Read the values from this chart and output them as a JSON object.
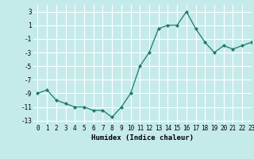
{
  "x": [
    0,
    1,
    2,
    3,
    4,
    5,
    6,
    7,
    8,
    9,
    10,
    11,
    12,
    13,
    14,
    15,
    16,
    17,
    18,
    19,
    20,
    21,
    22,
    23
  ],
  "y": [
    -9,
    -8.5,
    -10,
    -10.5,
    -11,
    -11,
    -11.5,
    -11.5,
    -12.5,
    -11,
    -9,
    -5,
    -3,
    0.5,
    1,
    1,
    3,
    0.5,
    -1.5,
    -3,
    -2,
    -2.5,
    -2,
    -1.5
  ],
  "xlabel": "Humidex (Indice chaleur)",
  "xlim": [
    -0.5,
    23
  ],
  "ylim": [
    -13.5,
    4
  ],
  "yticks": [
    3,
    1,
    -1,
    -3,
    -5,
    -7,
    -9,
    -11,
    -13
  ],
  "xticks": [
    0,
    1,
    2,
    3,
    4,
    5,
    6,
    7,
    8,
    9,
    10,
    11,
    12,
    13,
    14,
    15,
    16,
    17,
    18,
    19,
    20,
    21,
    22,
    23
  ],
  "line_color": "#1e7a68",
  "marker": "D",
  "marker_size": 2.0,
  "bg_color": "#c5eaea",
  "grid_color": "#ffffff",
  "tick_label_fontsize": 5.5,
  "xlabel_fontsize": 6.5
}
